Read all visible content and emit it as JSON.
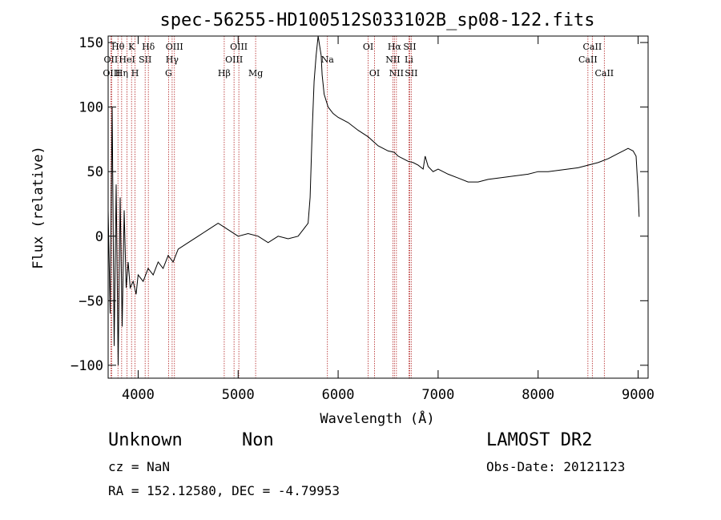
{
  "chart_data": {
    "type": "line",
    "title": "spec-56255-HD100512S033102B_sp08-122.fits",
    "xlabel": "Wavelength (Å)",
    "ylabel": "Flux (relative)",
    "xlim": [
      3700,
      9100
    ],
    "ylim": [
      -110,
      155
    ],
    "xticks": [
      4000,
      5000,
      6000,
      7000,
      8000,
      9000
    ],
    "yticks": [
      -100,
      -50,
      0,
      50,
      100,
      150
    ],
    "grid": false,
    "series": [
      {
        "x": [
          3700,
          3720,
          3740,
          3760,
          3780,
          3800,
          3820,
          3840,
          3860,
          3880,
          3900,
          3920,
          3950,
          3980,
          4000,
          4050,
          4100,
          4150,
          4200,
          4250,
          4300,
          4350,
          4400,
          4500,
          4600,
          4700,
          4800,
          4900,
          5000,
          5100,
          5200,
          5300,
          5400,
          5500,
          5600,
          5650,
          5700,
          5720,
          5740,
          5760,
          5780,
          5800,
          5820,
          5830,
          5840,
          5860,
          5880,
          5900,
          5950,
          6000,
          6100,
          6200,
          6300,
          6400,
          6500,
          6560,
          6600,
          6650,
          6700,
          6750,
          6800,
          6850,
          6870,
          6900,
          6950,
          7000,
          7100,
          7200,
          7300,
          7400,
          7500,
          7600,
          7700,
          7800,
          7900,
          8000,
          8100,
          8200,
          8300,
          8400,
          8500,
          8600,
          8700,
          8800,
          8850,
          8900,
          8950,
          8980,
          9000,
          9010
        ],
        "y": [
          20,
          -60,
          100,
          -85,
          40,
          -100,
          30,
          -70,
          20,
          -40,
          -20,
          -40,
          -35,
          -45,
          -30,
          -35,
          -25,
          -30,
          -20,
          -25,
          -15,
          -20,
          -10,
          -5,
          0,
          5,
          10,
          5,
          0,
          2,
          0,
          -5,
          0,
          -2,
          0,
          5,
          10,
          30,
          80,
          120,
          140,
          155,
          145,
          140,
          125,
          110,
          105,
          100,
          95,
          92,
          88,
          82,
          77,
          70,
          66,
          65,
          62,
          60,
          58,
          57,
          55,
          52,
          62,
          54,
          50,
          52,
          48,
          45,
          42,
          42,
          44,
          45,
          46,
          47,
          48,
          50,
          50,
          51,
          52,
          53,
          55,
          57,
          60,
          64,
          66,
          68,
          66,
          62,
          35,
          15
        ]
      }
    ],
    "lines": [
      {
        "label": "Hθ",
        "x": 3798,
        "row": 1
      },
      {
        "label": "OII",
        "x": 3727,
        "row": 2
      },
      {
        "label": "OIII",
        "x": 3735,
        "row": 3
      },
      {
        "label": "K",
        "x": 3934,
        "row": 1
      },
      {
        "label": "HeI",
        "x": 3889,
        "row": 2
      },
      {
        "label": "Hη",
        "x": 3835,
        "row": 3
      },
      {
        "label": "SII",
        "x": 4070,
        "row": 2
      },
      {
        "label": "H",
        "x": 3969,
        "row": 3
      },
      {
        "label": "Hδ",
        "x": 4102,
        "row": 1
      },
      {
        "label": "OIII",
        "x": 4363,
        "row": 1
      },
      {
        "label": "Hγ",
        "x": 4340,
        "row": 2
      },
      {
        "label": "G",
        "x": 4304,
        "row": 3
      },
      {
        "label": "Hβ",
        "x": 4861,
        "row": 3
      },
      {
        "label": "OIII",
        "x": 5007,
        "row": 1
      },
      {
        "label": "OIII",
        "x": 4959,
        "row": 2
      },
      {
        "label": "Mg",
        "x": 5175,
        "row": 3
      },
      {
        "label": "Na",
        "x": 5893,
        "row": 2
      },
      {
        "label": "OI",
        "x": 6300,
        "row": 1
      },
      {
        "label": "OI",
        "x": 6364,
        "row": 3
      },
      {
        "label": "Hα",
        "x": 6563,
        "row": 1
      },
      {
        "label": "NII",
        "x": 6548,
        "row": 2
      },
      {
        "label": "NII",
        "x": 6583,
        "row": 3
      },
      {
        "label": "SII",
        "x": 6716,
        "row": 1
      },
      {
        "label": "Li",
        "x": 6708,
        "row": 2
      },
      {
        "label": "SII",
        "x": 6731,
        "row": 3
      },
      {
        "label": "CaII",
        "x": 8542,
        "row": 1
      },
      {
        "label": "CaII",
        "x": 8498,
        "row": 2
      },
      {
        "label": "CaII",
        "x": 8662,
        "row": 3
      }
    ]
  },
  "info": {
    "object_class": "Unknown",
    "subclass": "Non",
    "survey": "LAMOST DR2",
    "cz": "cz = NaN",
    "obs_date": "Obs-Date: 20121123",
    "coords": "RA = 152.12580, DEC =  -4.79953"
  }
}
